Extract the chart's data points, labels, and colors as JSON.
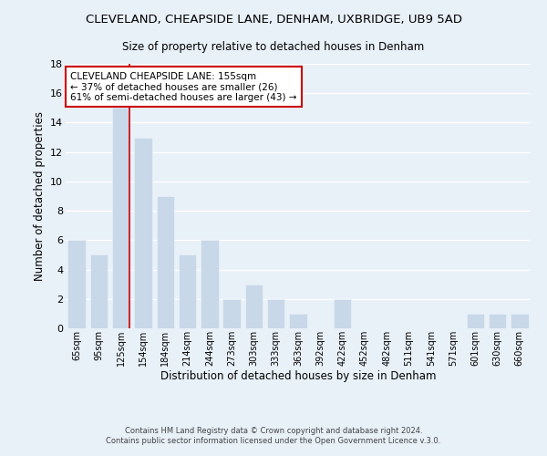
{
  "title": "CLEVELAND, CHEAPSIDE LANE, DENHAM, UXBRIDGE, UB9 5AD",
  "subtitle": "Size of property relative to detached houses in Denham",
  "xlabel": "Distribution of detached houses by size in Denham",
  "ylabel": "Number of detached properties",
  "bar_color": "#c8d8e8",
  "bar_edge_color": "#b0c4d8",
  "categories": [
    "65sqm",
    "95sqm",
    "125sqm",
    "154sqm",
    "184sqm",
    "214sqm",
    "244sqm",
    "273sqm",
    "303sqm",
    "333sqm",
    "363sqm",
    "392sqm",
    "422sqm",
    "452sqm",
    "482sqm",
    "511sqm",
    "541sqm",
    "571sqm",
    "601sqm",
    "630sqm",
    "660sqm"
  ],
  "values": [
    6,
    5,
    15,
    13,
    9,
    5,
    6,
    2,
    3,
    2,
    1,
    0,
    2,
    0,
    0,
    0,
    0,
    0,
    1,
    1,
    1
  ],
  "ylim": [
    0,
    18
  ],
  "yticks": [
    0,
    2,
    4,
    6,
    8,
    10,
    12,
    14,
    16,
    18
  ],
  "vline_index": 2,
  "vline_color": "#cc0000",
  "annotation_title": "CLEVELAND CHEAPSIDE LANE: 155sqm",
  "annotation_line1": "← 37% of detached houses are smaller (26)",
  "annotation_line2": "61% of semi-detached houses are larger (43) →",
  "annotation_box_color": "#ffffff",
  "annotation_box_edge": "#cc0000",
  "footer1": "Contains HM Land Registry data © Crown copyright and database right 2024.",
  "footer2": "Contains public sector information licensed under the Open Government Licence v.3.0.",
  "background_color": "#e8f0f8",
  "grid_color": "#ffffff"
}
